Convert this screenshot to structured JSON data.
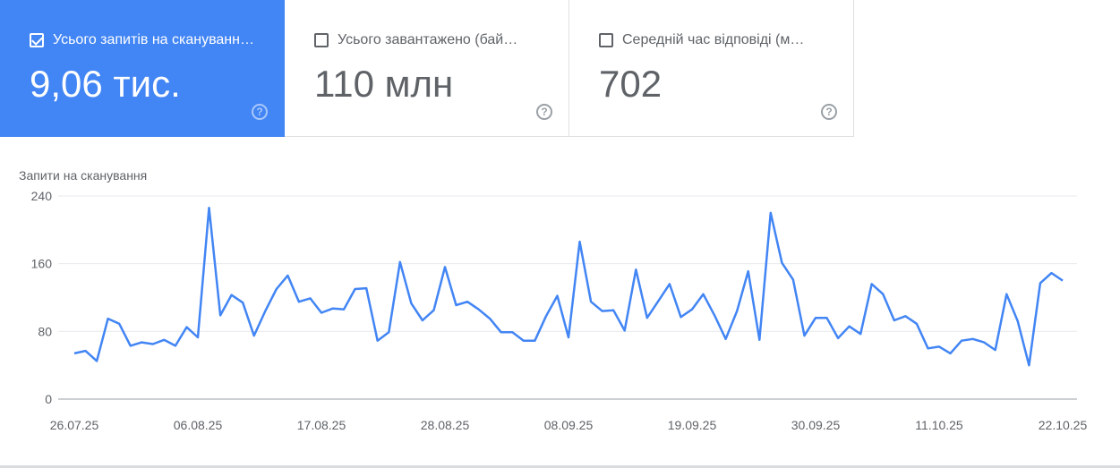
{
  "tiles": [
    {
      "label": "Усього запитів на скануванн…",
      "value": "9,06 тис.",
      "checked": true
    },
    {
      "label": "Усього завантажено (бай…",
      "value": "110 млн",
      "checked": false
    },
    {
      "label": "Середній час відповіді (м…",
      "value": "702",
      "checked": false
    }
  ],
  "colors": {
    "accent": "#4285f4",
    "line": "#4285f4"
  },
  "chart_data": {
    "type": "line",
    "title": "",
    "ylabel": "Запити на сканування",
    "ylim": [
      0,
      240
    ],
    "yticks": [
      "0",
      "80",
      "160",
      "240"
    ],
    "xticks": [
      "26.07.25",
      "06.08.25",
      "17.08.25",
      "28.08.25",
      "08.09.25",
      "19.09.25",
      "30.09.25",
      "11.10.25",
      "22.10.25"
    ],
    "x_start": "26.07.25",
    "x_end": "22.10.25",
    "grid": true,
    "values": [
      54,
      57,
      45,
      95,
      89,
      63,
      67,
      65,
      70,
      63,
      85,
      73,
      226,
      99,
      123,
      114,
      75,
      104,
      130,
      146,
      115,
      119,
      102,
      107,
      106,
      130,
      131,
      69,
      79,
      162,
      113,
      93,
      105,
      156,
      111,
      115,
      106,
      95,
      79,
      79,
      69,
      69,
      98,
      122,
      73,
      186,
      115,
      104,
      105,
      81,
      153,
      96,
      116,
      136,
      97,
      106,
      124,
      99,
      71,
      104,
      151,
      70,
      220,
      161,
      141,
      75,
      96,
      96,
      72,
      86,
      77,
      136,
      124,
      93,
      98,
      89,
      60,
      62,
      54,
      69,
      71,
      67,
      58,
      124,
      92,
      40,
      137,
      149,
      140
    ]
  }
}
